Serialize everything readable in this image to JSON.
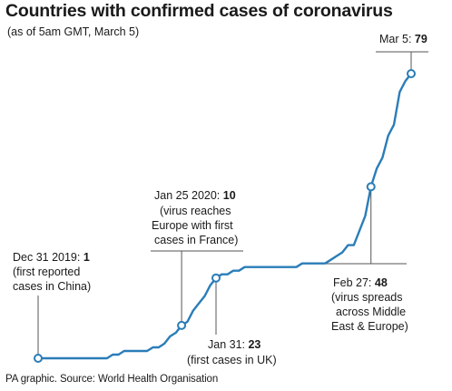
{
  "title": "Countries with confirmed cases of coronavirus",
  "subtitle": "(as of 5am GMT, March 5)",
  "source": "PA graphic. Source: World Health Organisation",
  "colors": {
    "line": "#2a7db8",
    "marker_fill": "#ffffff",
    "leader": "#555555",
    "text": "#1a1a1a"
  },
  "chart_data": {
    "type": "line",
    "title": "Countries with confirmed cases of coronavirus",
    "subtitle": "(as of 5am GMT, March 5)",
    "xlabel": "",
    "ylabel": "",
    "grid": false,
    "axes_visible": false,
    "xlim": [
      "2019-12-31",
      "2020-03-05"
    ],
    "ylim": [
      0,
      80
    ],
    "series": [
      {
        "points": [
          {
            "x": "2019-12-31",
            "y": 1
          },
          {
            "x": "2020-01-12",
            "y": 1
          },
          {
            "x": "2020-01-13",
            "y": 2
          },
          {
            "x": "2020-01-14",
            "y": 2
          },
          {
            "x": "2020-01-15",
            "y": 3
          },
          {
            "x": "2020-01-19",
            "y": 3
          },
          {
            "x": "2020-01-20",
            "y": 4
          },
          {
            "x": "2020-01-21",
            "y": 4
          },
          {
            "x": "2020-01-22",
            "y": 5
          },
          {
            "x": "2020-01-23",
            "y": 7
          },
          {
            "x": "2020-01-24",
            "y": 8
          },
          {
            "x": "2020-01-25",
            "y": 10
          },
          {
            "x": "2020-01-26",
            "y": 11
          },
          {
            "x": "2020-01-27",
            "y": 14
          },
          {
            "x": "2020-01-28",
            "y": 16
          },
          {
            "x": "2020-01-29",
            "y": 18
          },
          {
            "x": "2020-01-30",
            "y": 21
          },
          {
            "x": "2020-01-31",
            "y": 23
          },
          {
            "x": "2020-02-01",
            "y": 24
          },
          {
            "x": "2020-02-02",
            "y": 24
          },
          {
            "x": "2020-02-03",
            "y": 25
          },
          {
            "x": "2020-02-04",
            "y": 25
          },
          {
            "x": "2020-02-05",
            "y": 26
          },
          {
            "x": "2020-02-06",
            "y": 26
          },
          {
            "x": "2020-02-07",
            "y": 26
          },
          {
            "x": "2020-02-08",
            "y": 26
          },
          {
            "x": "2020-02-09",
            "y": 26
          },
          {
            "x": "2020-02-10",
            "y": 26
          },
          {
            "x": "2020-02-11",
            "y": 26
          },
          {
            "x": "2020-02-12",
            "y": 26
          },
          {
            "x": "2020-02-13",
            "y": 26
          },
          {
            "x": "2020-02-14",
            "y": 26
          },
          {
            "x": "2020-02-15",
            "y": 27
          },
          {
            "x": "2020-02-16",
            "y": 27
          },
          {
            "x": "2020-02-17",
            "y": 27
          },
          {
            "x": "2020-02-18",
            "y": 27
          },
          {
            "x": "2020-02-19",
            "y": 27
          },
          {
            "x": "2020-02-20",
            "y": 28
          },
          {
            "x": "2020-02-21",
            "y": 29
          },
          {
            "x": "2020-02-22",
            "y": 30
          },
          {
            "x": "2020-02-23",
            "y": 32
          },
          {
            "x": "2020-02-24",
            "y": 32
          },
          {
            "x": "2020-02-25",
            "y": 36
          },
          {
            "x": "2020-02-26",
            "y": 40
          },
          {
            "x": "2020-02-27",
            "y": 48
          },
          {
            "x": "2020-02-28",
            "y": 53
          },
          {
            "x": "2020-02-29",
            "y": 56
          },
          {
            "x": "2020-03-01",
            "y": 62
          },
          {
            "x": "2020-03-02",
            "y": 65
          },
          {
            "x": "2020-03-03",
            "y": 74
          },
          {
            "x": "2020-03-04",
            "y": 77
          },
          {
            "x": "2020-03-05",
            "y": 79
          }
        ]
      }
    ],
    "highlighted_points": [
      {
        "x": "2019-12-31",
        "y": 1
      },
      {
        "x": "2020-01-25",
        "y": 10
      },
      {
        "x": "2020-01-31",
        "y": 23
      },
      {
        "x": "2020-02-27",
        "y": 48
      },
      {
        "x": "2020-03-05",
        "y": 79
      }
    ],
    "annotations": [
      {
        "date_label": "Dec 31 2019: ",
        "value_label": "1",
        "note_lines": [
          "(first reported",
          "cases in China)"
        ]
      },
      {
        "date_label": "Jan 25 2020: ",
        "value_label": "10",
        "note_lines": [
          "(virus reaches",
          "Europe with first",
          "cases in France)"
        ]
      },
      {
        "date_label": "Jan 31: ",
        "value_label": "23",
        "note_lines": [
          "(first cases in UK)"
        ]
      },
      {
        "date_label": "Feb 27: ",
        "value_label": "48",
        "note_lines": [
          "(virus spreads",
          "across Middle",
          "East & Europe)"
        ]
      },
      {
        "date_label": "Mar 5: ",
        "value_label": "79",
        "note_lines": []
      }
    ]
  }
}
